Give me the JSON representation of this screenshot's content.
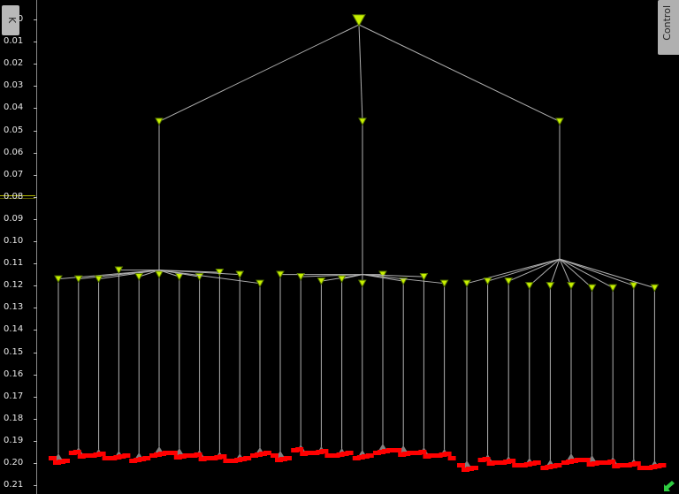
{
  "axis": {
    "ticks": [
      "0.00",
      "0.01",
      "0.02",
      "0.03",
      "0.04",
      "0.05",
      "0.06",
      "0.07",
      "0.08",
      "0.09",
      "0.10",
      "0.11",
      "0.12",
      "0.13",
      "0.14",
      "0.15",
      "0.16",
      "0.17",
      "0.18",
      "0.19",
      "0.20",
      "0.21"
    ]
  },
  "tabs": {
    "k_label": "K",
    "control_label": "Control"
  },
  "colors": {
    "node_fill": "#c8f000",
    "node_stroke": "#5a7a00",
    "edge": "#b0b0b0",
    "leaf_marker": "#ff0000",
    "cluster_marker": "#808080",
    "corner_icon": "#2ecc40"
  },
  "icons": {
    "root": "triangle-down-icon",
    "node": "triangle-down-icon",
    "corner": "resize-arrow-icon"
  },
  "tree": {
    "root": {
      "height": 0.0
    },
    "level1": [
      {
        "height": 0.046,
        "children": [
          0.117,
          0.117,
          0.117,
          0.113,
          0.116,
          0.115,
          0.116,
          0.116,
          0.114,
          0.115,
          0.119
        ]
      },
      {
        "height": 0.046,
        "children": [
          0.115,
          0.116,
          0.118,
          0.117,
          0.119,
          0.115,
          0.118,
          0.116,
          0.119
        ]
      },
      {
        "height": 0.046,
        "children": [
          0.119,
          0.118,
          0.118,
          0.12,
          0.12,
          0.12,
          0.121,
          0.121,
          0.12,
          0.121
        ]
      }
    ],
    "level1_merge": [
      0.113,
      0.115,
      0.108
    ]
  }
}
